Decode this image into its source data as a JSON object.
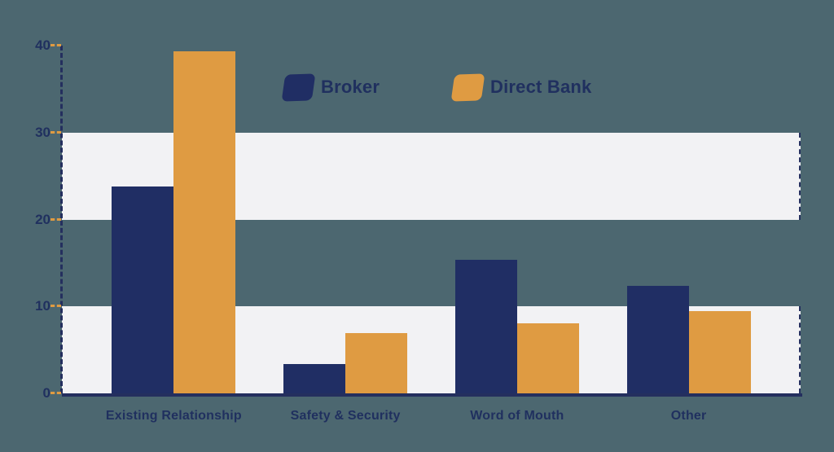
{
  "chart_data": {
    "type": "bar",
    "title": "",
    "categories": [
      "Existing Relationship",
      "Safety & Security",
      "Word of Mouth",
      "Other"
    ],
    "series": [
      {
        "name": "Broker",
        "color": "#202E64",
        "values": [
          23.8,
          3.4,
          15.4,
          12.4
        ]
      },
      {
        "name": "Direct Bank",
        "color": "#DF9B42",
        "values": [
          39.3,
          6.9,
          8.1,
          9.5
        ]
      }
    ],
    "xlabel": "",
    "ylabel": "",
    "ylim": [
      0,
      40
    ],
    "yticks": [
      0,
      10,
      20,
      30,
      40
    ],
    "grid": "off",
    "background_bands": [
      {
        "from": 0,
        "to": 10
      },
      {
        "from": 20,
        "to": 30
      }
    ],
    "legend_position": "top-center"
  },
  "colors": {
    "background": "#4C6770",
    "band": "#F2F2F4",
    "axis": "#242F5E",
    "tick": "#DF9B42",
    "text": "#20305F",
    "broker": "#202E64",
    "direct_bank": "#DF9B42"
  }
}
